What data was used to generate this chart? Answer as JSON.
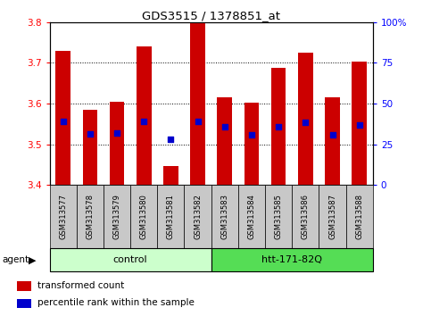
{
  "title": "GDS3515 / 1378851_at",
  "samples": [
    "GSM313577",
    "GSM313578",
    "GSM313579",
    "GSM313580",
    "GSM313581",
    "GSM313582",
    "GSM313583",
    "GSM313584",
    "GSM313585",
    "GSM313586",
    "GSM313587",
    "GSM313588"
  ],
  "bar_tops": [
    3.73,
    3.585,
    3.605,
    3.74,
    3.447,
    3.8,
    3.615,
    3.602,
    3.688,
    3.724,
    3.615,
    3.702
  ],
  "bar_base": 3.4,
  "blue_dot_values": [
    3.555,
    3.525,
    3.527,
    3.557,
    3.513,
    3.555,
    3.543,
    3.523,
    3.543,
    3.553,
    3.522,
    3.548
  ],
  "ylim_left": [
    3.4,
    3.8
  ],
  "ylim_right": [
    0,
    100
  ],
  "yticks_left": [
    3.4,
    3.5,
    3.6,
    3.7,
    3.8
  ],
  "yticks_right": [
    0,
    25,
    50,
    75,
    100
  ],
  "bar_color": "#cc0000",
  "blue_color": "#0000cc",
  "control_group_count": 6,
  "htt_group_count": 6,
  "control_label": "control",
  "htt_label": "htt-171-82Q",
  "agent_label": "agent",
  "legend_bar_label": "transformed count",
  "legend_dot_label": "percentile rank within the sample",
  "control_color": "#ccffcc",
  "htt_color": "#55dd55",
  "tick_label_bg": "#c8c8c8",
  "bar_width": 0.55,
  "blue_dot_size": 18,
  "figsize": [
    4.83,
    3.54
  ],
  "dpi": 100
}
